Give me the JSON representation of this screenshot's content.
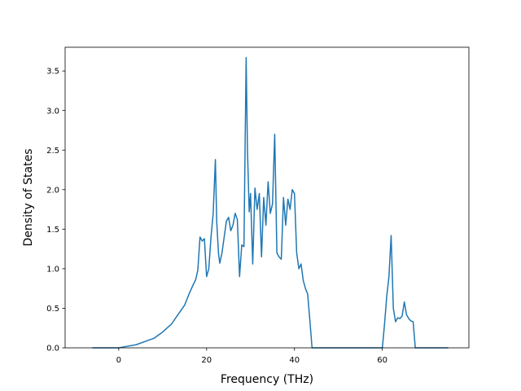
{
  "chart_data": {
    "type": "line",
    "title": "",
    "xlabel": "Frequency (THz)",
    "ylabel": "Density of States",
    "xlim": [
      -12.2,
      79.7
    ],
    "ylim": [
      0.0,
      3.8
    ],
    "xticks": [
      0,
      20,
      40,
      60
    ],
    "yticks": [
      0.0,
      0.5,
      1.0,
      1.5,
      2.0,
      2.5,
      3.0,
      3.5
    ],
    "xtick_labels": [
      "0",
      "20",
      "40",
      "60"
    ],
    "ytick_labels": [
      "0.0",
      "0.5",
      "1.0",
      "1.5",
      "2.0",
      2.5,
      "3.0",
      "3.5"
    ],
    "grid": false,
    "legend": "none",
    "line_color": "#1f77b4",
    "series": [
      {
        "x": [
          -6.0,
          -4.0,
          -2.0,
          0.0,
          2.0,
          4.0,
          6.0,
          8.0,
          10.0,
          11.0,
          12.0,
          13.0,
          14.0,
          15.0,
          16.0,
          16.8,
          17.5,
          18.0,
          18.5,
          19.0,
          19.5,
          20.0,
          20.5,
          21.0,
          21.5,
          22.0,
          22.3,
          22.7,
          23.0,
          23.5,
          24.0,
          24.5,
          25.0,
          25.5,
          26.0,
          26.5,
          27.0,
          27.5,
          28.0,
          28.5,
          29.0,
          29.3,
          29.7,
          30.0,
          30.5,
          31.0,
          31.5,
          32.0,
          32.5,
          33.0,
          33.5,
          34.0,
          34.5,
          35.0,
          35.5,
          36.0,
          36.5,
          37.0,
          37.5,
          38.0,
          38.5,
          39.0,
          39.5,
          40.0,
          40.5,
          41.0,
          41.5,
          42.0,
          42.5,
          43.0,
          43.5,
          44.0,
          44.5,
          50.0,
          55.0,
          60.0,
          60.5,
          61.0,
          61.5,
          62.0,
          62.5,
          63.0,
          63.5,
          64.0,
          64.5,
          65.0,
          65.5,
          66.0,
          66.5,
          67.0,
          67.5,
          68.0,
          68.5,
          69.0,
          69.5,
          70.0,
          75.0
        ],
        "y": [
          0.0,
          0.0,
          0.0,
          0.0,
          0.02,
          0.04,
          0.08,
          0.12,
          0.2,
          0.25,
          0.3,
          0.38,
          0.46,
          0.54,
          0.68,
          0.78,
          0.86,
          0.98,
          1.4,
          1.35,
          1.38,
          0.9,
          1.0,
          1.4,
          1.7,
          2.38,
          1.6,
          1.2,
          1.07,
          1.2,
          1.4,
          1.6,
          1.65,
          1.48,
          1.55,
          1.7,
          1.62,
          0.9,
          1.3,
          1.28,
          3.67,
          2.5,
          1.72,
          1.95,
          1.06,
          2.02,
          1.75,
          1.95,
          1.15,
          1.9,
          1.55,
          2.1,
          1.7,
          1.82,
          2.7,
          1.2,
          1.15,
          1.12,
          1.9,
          1.55,
          1.88,
          1.75,
          2.0,
          1.95,
          1.2,
          1.0,
          1.06,
          0.85,
          0.75,
          0.68,
          0.35,
          0.0,
          0.0,
          0.0,
          0.0,
          0.0,
          0.3,
          0.65,
          0.9,
          1.42,
          0.5,
          0.33,
          0.38,
          0.37,
          0.4,
          0.58,
          0.42,
          0.37,
          0.34,
          0.33,
          0.0,
          0.0,
          0.0,
          0.0,
          0.0,
          0.0,
          0.0
        ]
      }
    ]
  }
}
